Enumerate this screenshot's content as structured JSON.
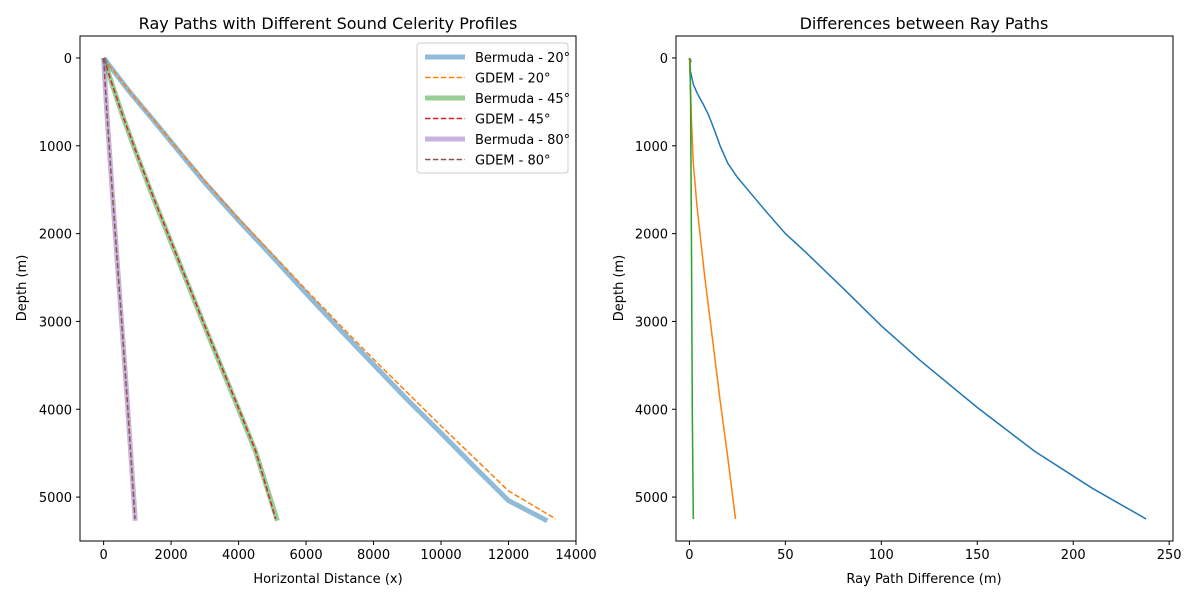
{
  "colors": {
    "blue": "#1f77b4",
    "orange": "#ff7f0e",
    "green": "#2ca02c",
    "red": "#d62728",
    "purple": "#9467bd",
    "brown": "#8c564b"
  },
  "chart_data": [
    {
      "type": "line",
      "title": "Ray Paths with Different Sound Celerity Profiles",
      "xlabel": "Horizontal Distance (x)",
      "ylabel": "Depth (m)",
      "xlim": [
        -700,
        14000
      ],
      "ylim": [
        5500,
        -250
      ],
      "y_inverted": true,
      "xticks": [
        0,
        2000,
        4000,
        6000,
        8000,
        10000,
        12000,
        14000
      ],
      "yticks": [
        0,
        1000,
        2000,
        3000,
        4000,
        5000
      ],
      "grid": false,
      "legend": "top-right",
      "series": [
        {
          "name": "Bermuda - 20°",
          "style": "thick",
          "color": "#1f77b4",
          "x": [
            0,
            300,
            800,
            1500,
            2200,
            3000,
            4000,
            5000,
            6000,
            7000,
            8000,
            9000,
            10000,
            11000,
            12000,
            13150
          ],
          "y": [
            0,
            150,
            400,
            720,
            1050,
            1420,
            1850,
            2260,
            2680,
            3090,
            3490,
            3890,
            4270,
            4660,
            5040,
            5270
          ]
        },
        {
          "name": "GDEM - 20°",
          "style": "dashed",
          "color": "#ff7f0e",
          "x": [
            0,
            300,
            800,
            1500,
            2200,
            3000,
            4000,
            5000,
            6000,
            7000,
            8000,
            9000,
            10000,
            11000,
            12000,
            13400
          ],
          "y": [
            0,
            148,
            395,
            712,
            1040,
            1400,
            1830,
            2230,
            2640,
            3040,
            3430,
            3810,
            4190,
            4560,
            4930,
            5250
          ]
        },
        {
          "name": "Bermuda - 45°",
          "style": "thick",
          "color": "#2ca02c",
          "x": [
            0,
            250,
            600,
            1000,
            1500,
            2000,
            2500,
            3000,
            3500,
            4000,
            4500,
            5150
          ],
          "y": [
            0,
            300,
            700,
            1120,
            1620,
            2100,
            2580,
            3060,
            3530,
            4000,
            4480,
            5270
          ]
        },
        {
          "name": "GDEM - 45°",
          "style": "dashed",
          "color": "#d62728",
          "x": [
            0,
            250,
            600,
            1000,
            1500,
            2000,
            2500,
            3000,
            3500,
            4000,
            4500,
            5100
          ],
          "y": [
            0,
            298,
            695,
            1110,
            1610,
            2090,
            2570,
            3050,
            3520,
            3990,
            4470,
            5250
          ]
        },
        {
          "name": "Bermuda - 80°",
          "style": "thick",
          "color": "#9467bd",
          "x": [
            0,
            100,
            250,
            400,
            550,
            700,
            940
          ],
          "y": [
            0,
            650,
            1500,
            2300,
            3100,
            3900,
            5270
          ]
        },
        {
          "name": "GDEM - 80°",
          "style": "dashed",
          "color": "#8c564b",
          "x": [
            0,
            100,
            250,
            400,
            550,
            700,
            930
          ],
          "y": [
            0,
            645,
            1490,
            2290,
            3090,
            3890,
            5250
          ]
        }
      ]
    },
    {
      "type": "line",
      "title": "Differences between Ray Paths",
      "xlabel": "Ray Path Difference (m)",
      "ylabel": "Depth (m)",
      "xlim": [
        -7,
        252
      ],
      "ylim": [
        5500,
        -250
      ],
      "y_inverted": true,
      "xticks": [
        0,
        50,
        100,
        150,
        200,
        250
      ],
      "yticks": [
        0,
        1000,
        2000,
        3000,
        4000,
        5000
      ],
      "grid": false,
      "series": [
        {
          "color": "#1f77b4",
          "x": [
            0,
            0.5,
            2,
            4,
            7,
            10,
            13,
            16,
            20,
            25,
            30,
            40,
            50,
            60,
            80,
            100,
            120,
            150,
            180,
            210,
            238
          ],
          "y": [
            0,
            150,
            300,
            400,
            520,
            650,
            820,
            1000,
            1200,
            1360,
            1490,
            1750,
            2000,
            2200,
            2620,
            3050,
            3440,
            3980,
            4480,
            4900,
            5250
          ]
        },
        {
          "color": "#ff7f0e",
          "x": [
            0,
            0.5,
            1,
            2,
            4,
            8,
            12,
            16,
            20,
            24
          ],
          "y": [
            0,
            300,
            700,
            1200,
            1700,
            2500,
            3200,
            3900,
            4550,
            5250
          ]
        },
        {
          "color": "#2ca02c",
          "x": [
            0,
            0.8,
            0.3,
            0.6,
            1,
            1.5,
            2
          ],
          "y": [
            0,
            30,
            60,
            500,
            2000,
            4000,
            5250
          ]
        }
      ]
    }
  ]
}
